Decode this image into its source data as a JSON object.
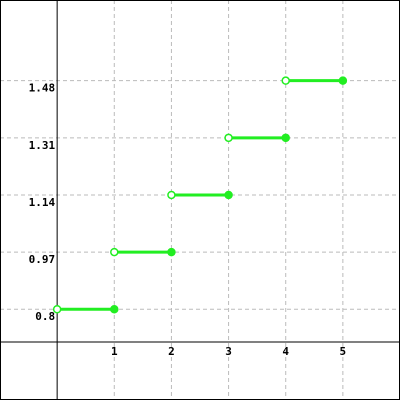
{
  "chart_data": {
    "type": "line",
    "subtype": "step-function",
    "title": "",
    "xlabel": "",
    "ylabel": "",
    "xlim": [
      -1,
      6
    ],
    "ylim": [
      0.53,
      1.72
    ],
    "x_ticks": [
      "1",
      "2",
      "3",
      "4",
      "5"
    ],
    "y_ticks": [
      "0.8",
      "0.97",
      "1.14",
      "1.31",
      "1.48"
    ],
    "grid": true,
    "segments": [
      {
        "x_start": 0,
        "x_end": 1,
        "y": 0.8,
        "start": "open",
        "end": "closed"
      },
      {
        "x_start": 1,
        "x_end": 2,
        "y": 0.97,
        "start": "open",
        "end": "closed"
      },
      {
        "x_start": 2,
        "x_end": 3,
        "y": 1.14,
        "start": "open",
        "end": "closed"
      },
      {
        "x_start": 3,
        "x_end": 4,
        "y": 1.31,
        "start": "open",
        "end": "closed"
      },
      {
        "x_start": 4,
        "x_end": 5,
        "y": 1.48,
        "start": "open",
        "end": "closed"
      }
    ],
    "colors": {
      "series": "#22ee22",
      "grid": "#bbbbbb",
      "axis": "#000000",
      "border": "#000000"
    }
  }
}
